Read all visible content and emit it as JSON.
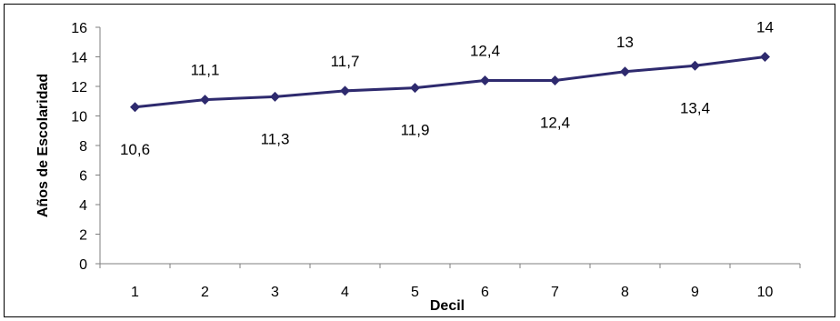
{
  "chart_data": {
    "type": "line",
    "categories": [
      "1",
      "2",
      "3",
      "4",
      "5",
      "6",
      "7",
      "8",
      "9",
      "10"
    ],
    "series": [
      {
        "values": [
          10.6,
          11.1,
          11.3,
          11.7,
          11.9,
          12.4,
          12.4,
          13,
          13.4,
          14
        ]
      }
    ],
    "data_labels": [
      "10,6",
      "11,1",
      "11,3",
      "11,7",
      "11,9",
      "12,4",
      "12,4",
      "13",
      "13,4",
      "14"
    ],
    "xlabel": "Decil",
    "ylabel": "Años de Escolaridad",
    "ylim": [
      0,
      16
    ],
    "yticks": [
      0,
      2,
      4,
      6,
      8,
      10,
      12,
      14,
      16
    ],
    "grid": false,
    "legend": "none",
    "colors": {
      "line": "#2E2A6E",
      "marker": "#2E2A6E"
    }
  }
}
